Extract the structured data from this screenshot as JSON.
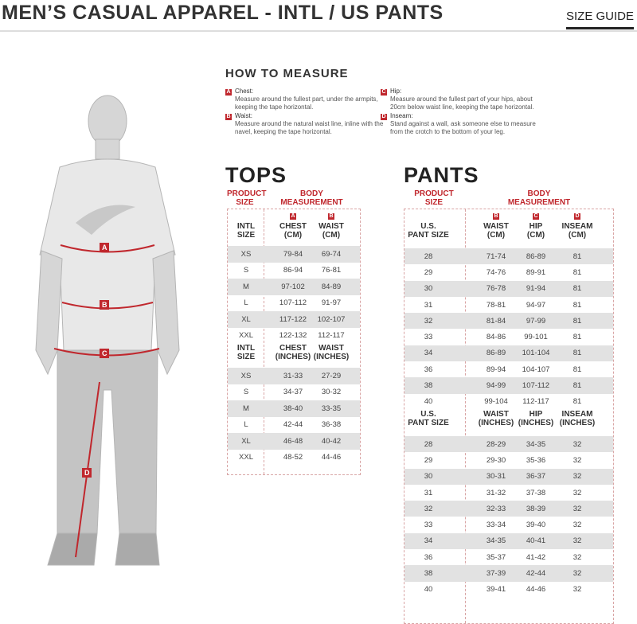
{
  "header": {
    "title": "MEN’S CASUAL APPAREL - INTL / US PANTS",
    "size_guide": "SIZE GUIDE"
  },
  "how_to_measure": {
    "title": "HOW TO MEASURE",
    "items": [
      {
        "letter": "A",
        "label": "Chest:",
        "text": "Measure around the fullest part, under the armpits, keeping the tape horizontal."
      },
      {
        "letter": "B",
        "label": "Waist:",
        "text": "Measure around the natural waist line, inline with the navel, keeping the tape horizontal."
      },
      {
        "letter": "C",
        "label": "Hip:",
        "text": "Measure around the fullest part of your hips, about 20cm below waist line, keeping the tape horizontal."
      },
      {
        "letter": "D",
        "label": "Inseam:",
        "text": "Stand against a wall, ask someone else to measure from the crotch to the bottom of your leg."
      }
    ]
  },
  "accent_color": "#c0272d",
  "figure": {
    "labels": [
      "A",
      "B",
      "C",
      "D"
    ]
  },
  "tops": {
    "title": "TOPS",
    "product_size": "PRODUCT\nSIZE",
    "body_measurement": "BODY\nMEASUREMENT",
    "cm_headers": [
      "INTL\nSIZE",
      "CHEST\n(CM)",
      "WAIST\n(CM)"
    ],
    "cm_rows": [
      [
        "XS",
        "79-84",
        "69-74"
      ],
      [
        "S",
        "86-94",
        "76-81"
      ],
      [
        "M",
        "97-102",
        "84-89"
      ],
      [
        "L",
        "107-112",
        "91-97"
      ],
      [
        "XL",
        "117-122",
        "102-107"
      ],
      [
        "XXL",
        "122-132",
        "112-117"
      ]
    ],
    "in_headers": [
      "INTL\nSIZE",
      "CHEST\n(INCHES)",
      "WAIST\n(INCHES)"
    ],
    "in_rows": [
      [
        "XS",
        "31-33",
        "27-29"
      ],
      [
        "S",
        "34-37",
        "30-32"
      ],
      [
        "M",
        "38-40",
        "33-35"
      ],
      [
        "L",
        "42-44",
        "36-38"
      ],
      [
        "XL",
        "46-48",
        "40-42"
      ],
      [
        "XXL",
        "48-52",
        "44-46"
      ]
    ]
  },
  "pants": {
    "title": "PANTS",
    "product_size": "PRODUCT\nSIZE",
    "body_measurement": "BODY\nMEASUREMENT",
    "cm_headers": [
      "U.S.\nPANT SIZE",
      "WAIST\n(CM)",
      "HIP\n(CM)",
      "INSEAM\n(CM)"
    ],
    "cm_rows": [
      [
        "28",
        "71-74",
        "86-89",
        "81"
      ],
      [
        "29",
        "74-76",
        "89-91",
        "81"
      ],
      [
        "30",
        "76-78",
        "91-94",
        "81"
      ],
      [
        "31",
        "78-81",
        "94-97",
        "81"
      ],
      [
        "32",
        "81-84",
        "97-99",
        "81"
      ],
      [
        "33",
        "84-86",
        "99-101",
        "81"
      ],
      [
        "34",
        "86-89",
        "101-104",
        "81"
      ],
      [
        "36",
        "89-94",
        "104-107",
        "81"
      ],
      [
        "38",
        "94-99",
        "107-112",
        "81"
      ],
      [
        "40",
        "99-104",
        "112-117",
        "81"
      ]
    ],
    "in_headers": [
      "U.S.\nPANT SIZE",
      "WAIST\n(INCHES)",
      "HIP\n(INCHES)",
      "INSEAM\n(INCHES)"
    ],
    "in_rows": [
      [
        "28",
        "28-29",
        "34-35",
        "32"
      ],
      [
        "29",
        "29-30",
        "35-36",
        "32"
      ],
      [
        "30",
        "30-31",
        "36-37",
        "32"
      ],
      [
        "31",
        "31-32",
        "37-38",
        "32"
      ],
      [
        "32",
        "32-33",
        "38-39",
        "32"
      ],
      [
        "33",
        "33-34",
        "39-40",
        "32"
      ],
      [
        "34",
        "34-35",
        "40-41",
        "32"
      ],
      [
        "36",
        "35-37",
        "41-42",
        "32"
      ],
      [
        "38",
        "37-39",
        "42-44",
        "32"
      ],
      [
        "40",
        "39-41",
        "44-46",
        "32"
      ]
    ]
  }
}
